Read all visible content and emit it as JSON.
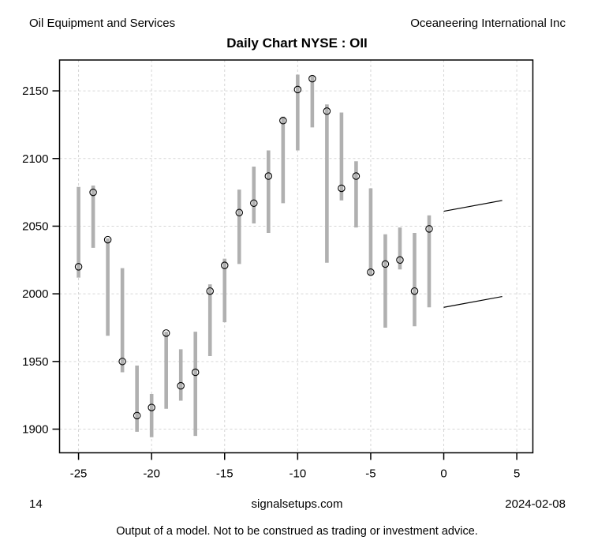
{
  "header": {
    "sector": "Oil Equipment and Services",
    "company": "Oceaneering International Inc",
    "title": "Daily Chart NYSE : OII"
  },
  "bottom": {
    "left_number": "14",
    "website": "signalsetups.com",
    "date": "2024-02-08"
  },
  "disclaimer": "Output of a model. Not to be construed as trading or investment advice.",
  "chart_data": {
    "type": "bar",
    "subtype": "high-low-close",
    "title": "Daily Chart NYSE : OII",
    "xlabel": "",
    "ylabel": "",
    "grid": true,
    "legend": "none",
    "x_axis": {
      "ticks": [
        -25,
        -20,
        -15,
        -10,
        -5,
        0,
        5
      ],
      "range": [
        -26.3,
        6.1
      ]
    },
    "y_axis": {
      "ticks": [
        1900,
        1950,
        2000,
        2050,
        2100,
        2150
      ],
      "range": [
        1882.5,
        2172.8
      ]
    },
    "colors": {
      "bar": "#b0b0b0",
      "grid": "#d6d6d6",
      "axis": "#000000",
      "marker": "#000000",
      "forecast": "#000000"
    },
    "bars": [
      {
        "x": -25,
        "high": 2079,
        "low": 2012,
        "close": 2020
      },
      {
        "x": -24,
        "high": 2080,
        "low": 2034,
        "close": 2075
      },
      {
        "x": -23,
        "high": 2041,
        "low": 1969,
        "close": 2040
      },
      {
        "x": -22,
        "high": 2019,
        "low": 1942,
        "close": 1950
      },
      {
        "x": -21,
        "high": 1947,
        "low": 1898,
        "close": 1910
      },
      {
        "x": -20,
        "high": 1926,
        "low": 1894,
        "close": 1916
      },
      {
        "x": -19,
        "high": 1972,
        "low": 1915,
        "close": 1971
      },
      {
        "x": -18,
        "high": 1959,
        "low": 1921,
        "close": 1932
      },
      {
        "x": -17,
        "high": 1972,
        "low": 1895,
        "close": 1942
      },
      {
        "x": -16,
        "high": 2007,
        "low": 1954,
        "close": 2002
      },
      {
        "x": -15,
        "high": 2026,
        "low": 1979,
        "close": 2021
      },
      {
        "x": -14,
        "high": 2077,
        "low": 2022,
        "close": 2060
      },
      {
        "x": -13,
        "high": 2094,
        "low": 2052,
        "close": 2067
      },
      {
        "x": -12,
        "high": 2106,
        "low": 2045,
        "close": 2087
      },
      {
        "x": -11,
        "high": 2131,
        "low": 2067,
        "close": 2128
      },
      {
        "x": -10,
        "high": 2162,
        "low": 2106,
        "close": 2151
      },
      {
        "x": -9,
        "high": 2161,
        "low": 2123,
        "close": 2159
      },
      {
        "x": -8,
        "high": 2140,
        "low": 2023,
        "close": 2135
      },
      {
        "x": -7,
        "high": 2134,
        "low": 2069,
        "close": 2078
      },
      {
        "x": -6,
        "high": 2098,
        "low": 2049,
        "close": 2087
      },
      {
        "x": -5,
        "high": 2078,
        "low": 2014,
        "close": 2016
      },
      {
        "x": -4,
        "high": 2044,
        "low": 1975,
        "close": 2022
      },
      {
        "x": -3,
        "high": 2049,
        "low": 2018,
        "close": 2025
      },
      {
        "x": -2,
        "high": 2045,
        "low": 1976,
        "close": 2002
      },
      {
        "x": -1,
        "high": 2058,
        "low": 1990,
        "close": 2048
      }
    ],
    "forecast_lines": [
      {
        "name": "upper",
        "x": [
          0,
          4
        ],
        "y": [
          2061,
          2069
        ]
      },
      {
        "name": "lower",
        "x": [
          0,
          4
        ],
        "y": [
          1990,
          1998
        ]
      }
    ]
  }
}
